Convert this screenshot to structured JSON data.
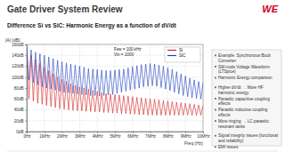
{
  "slide": {
    "title": "Gate Driver System Review",
    "subtitle": "Difference Si vs SiC: Harmonic Energy as a function of dV/dt",
    "logo": "WE",
    "bullets": [
      [
        "Example: Synchronous Buck Converter",
        "SW-node Voltage Waveform (LTSpice)",
        "Harmonic Energy comparison"
      ],
      [
        "Higher dV/dt → More HF harmonic energy",
        "Parasitic capacitive coupling effects",
        "Parasitic inductive coupling effects",
        "More ringing → LC parasitic resonant tanks"
      ],
      [
        "Signal integrity issues (functional and reliability)",
        "EMI issues"
      ]
    ]
  },
  "chart_data": {
    "type": "line",
    "x_label": "Freq (Hz)",
    "y_label": "|A| (dB)",
    "annotations": [
      "Fsw = 100 kHz",
      "Vin = 100V"
    ],
    "x": [
      0,
      0.125,
      0.25,
      0.375,
      0.5,
      0.625,
      0.75,
      0.875,
      1,
      1.125,
      1.25,
      1.375,
      1.5,
      1.625,
      1.75,
      1.875,
      2,
      2.125,
      2.25,
      2.375,
      2.5,
      2.625,
      2.75,
      2.875,
      3,
      3.125,
      3.25,
      3.375,
      3.5,
      3.625,
      3.75,
      3.875,
      4,
      4.125,
      4.25,
      4.375,
      4.5,
      4.625,
      4.75,
      4.875,
      5,
      5.125,
      5.25,
      5.375,
      5.5,
      5.625,
      5.75,
      5.875,
      6,
      6.125,
      6.25,
      6.375,
      6.5,
      6.625,
      6.75,
      6.875,
      7,
      7.125,
      7.25,
      7.375,
      7.5,
      7.625,
      7.75,
      7.875,
      8,
      8.125,
      8.25,
      8.375,
      8.5,
      8.625,
      8.75,
      8.875,
      9,
      9.125,
      9.25,
      9.375,
      9.5,
      9.625,
      9.75,
      9.875,
      10
    ],
    "series": [
      {
        "name": "Si",
        "color": "#d62020",
        "values": [
          150,
          60,
          140,
          56,
          132,
          52,
          125,
          50,
          118,
          48,
          112,
          46,
          106,
          44,
          100,
          42,
          96,
          41,
          92,
          40,
          88,
          39,
          85,
          38,
          82,
          38,
          80,
          37,
          78,
          37,
          76,
          36,
          74,
          36,
          72,
          35,
          70,
          35,
          69,
          34,
          68,
          34,
          67,
          33,
          66,
          33,
          65,
          32,
          64,
          32,
          63,
          31,
          62,
          31,
          61,
          30,
          60,
          30,
          59,
          30,
          58,
          30,
          57,
          30,
          56,
          30,
          55,
          30,
          54,
          30,
          53,
          30,
          52,
          30,
          51,
          30,
          50,
          30,
          49,
          30,
          48
        ]
      },
      {
        "name": "SiC",
        "color": "#1f3fbf",
        "values": [
          155,
          95,
          150,
          90,
          146,
          86,
          143,
          82,
          140,
          80,
          137,
          78,
          134,
          76,
          131,
          74,
          128,
          72,
          126,
          71,
          124,
          70,
          122,
          69,
          120,
          68,
          118,
          67,
          116,
          66,
          115,
          66,
          114,
          65,
          113,
          66,
          112,
          67,
          112,
          68,
          113,
          70,
          114,
          72,
          115,
          74,
          117,
          76,
          119,
          78,
          121,
          80,
          123,
          82,
          124,
          83,
          125,
          84,
          124,
          83,
          122,
          81,
          120,
          78,
          117,
          75,
          114,
          72,
          110,
          69,
          106,
          66,
          102,
          64,
          98,
          62,
          95,
          61,
          92,
          60,
          90
        ]
      }
    ],
    "xlim": [
      0,
      10
    ],
    "xticks": [
      {
        "value": 0,
        "label": "0Hz"
      },
      {
        "value": 1,
        "label": "1MHz"
      },
      {
        "value": 2,
        "label": "2MHz"
      },
      {
        "value": 3,
        "label": "3MHz"
      },
      {
        "value": 4,
        "label": "4MHz"
      },
      {
        "value": 5,
        "label": "5MHz"
      },
      {
        "value": 6,
        "label": "6MHz"
      },
      {
        "value": 7,
        "label": "7MHz"
      },
      {
        "value": 8,
        "label": "8MHz"
      },
      {
        "value": 9,
        "label": "9MHz"
      },
      {
        "value": 10,
        "label": "10MHz"
      }
    ],
    "ylim": [
      0,
      160
    ],
    "yticks": [
      {
        "value": 0,
        "label": "0dB"
      },
      {
        "value": 20,
        "label": "20dB"
      },
      {
        "value": 40,
        "label": "40dB"
      },
      {
        "value": 60,
        "label": "60dB"
      },
      {
        "value": 80,
        "label": "80dB"
      },
      {
        "value": 100,
        "label": "100dB"
      },
      {
        "value": 120,
        "label": "120dB"
      },
      {
        "value": 140,
        "label": "140dB"
      },
      {
        "value": 160,
        "label": "160dB"
      }
    ],
    "grid": true,
    "legend": "upper right"
  }
}
